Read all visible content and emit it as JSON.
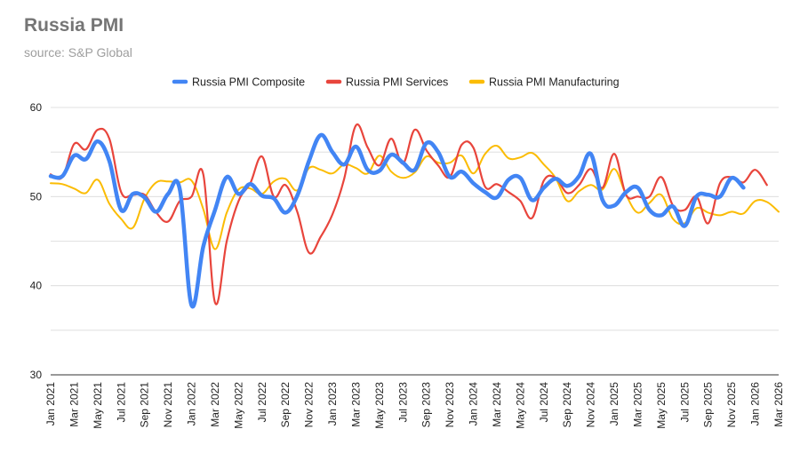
{
  "header": {
    "title": "Russia PMI",
    "subtitle": "source: S&P Global"
  },
  "chart_data": {
    "type": "line",
    "title": "Russia PMI",
    "subtitle": "source: S&P Global",
    "xlabel": "",
    "ylabel": "",
    "ylim": [
      30,
      60
    ],
    "yticks": [
      30,
      40,
      50,
      60
    ],
    "grid": true,
    "legend_position": "top",
    "x_tick_labels": [
      "Jan 2021",
      "Mar 2021",
      "May 2021",
      "Jul 2021",
      "Sep 2021",
      "Nov 2021",
      "Jan 2022",
      "Mar 2022",
      "May 2022",
      "Jul 2022",
      "Sep 2022",
      "Nov 2022",
      "Jan 2023",
      "Mar 2023",
      "May 2023",
      "Jul 2023",
      "Sep 2023",
      "Nov 2023",
      "Jan 2024",
      "Mar 2024",
      "May 2024",
      "Jul 2024",
      "Sep 2024",
      "Nov 2024",
      "Jan 2025",
      "Mar 2025",
      "May 2025",
      "Jul 2025",
      "Sep 2025",
      "Nov 2025",
      "Jan 2026",
      "Mar 2026"
    ],
    "x": [
      "2021-01",
      "2021-02",
      "2021-03",
      "2021-04",
      "2021-05",
      "2021-06",
      "2021-07",
      "2021-08",
      "2021-09",
      "2021-10",
      "2021-11",
      "2021-12",
      "2022-01",
      "2022-02",
      "2022-03",
      "2022-04",
      "2022-05",
      "2022-06",
      "2022-07",
      "2022-08",
      "2022-09",
      "2022-10",
      "2022-11",
      "2022-12",
      "2023-01",
      "2023-02",
      "2023-03",
      "2023-04",
      "2023-05",
      "2023-06",
      "2023-07",
      "2023-08",
      "2023-09",
      "2023-10",
      "2023-11",
      "2023-12",
      "2024-01",
      "2024-02",
      "2024-03",
      "2024-04",
      "2024-05",
      "2024-06",
      "2024-07",
      "2024-08",
      "2024-09",
      "2024-10",
      "2024-11",
      "2024-12",
      "2025-01",
      "2025-02",
      "2025-03",
      "2025-04",
      "2025-05",
      "2025-06",
      "2025-07",
      "2025-08",
      "2025-09",
      "2025-10",
      "2025-11",
      "2025-12",
      "2026-01",
      "2026-02",
      "2026-03"
    ],
    "series": [
      {
        "name": "Russia PMI Composite",
        "color": "#4285f4",
        "values": [
          52.3,
          52.3,
          54.6,
          54.2,
          56.2,
          54.0,
          48.5,
          50.3,
          49.9,
          48.3,
          50.3,
          50.8,
          37.8,
          44.4,
          48.5,
          52.2,
          50.3,
          51.4,
          50.1,
          49.8,
          48.2,
          50.1,
          54.0,
          56.9,
          55.0,
          53.6,
          55.6,
          53.0,
          52.9,
          54.7,
          53.8,
          53.0,
          56.0,
          55.0,
          52.2,
          52.8,
          51.5,
          50.5,
          49.9,
          51.9,
          52.1,
          49.6,
          51.0,
          52.0,
          51.2,
          52.3,
          54.8,
          49.6,
          49.0,
          50.5,
          51.0,
          48.5,
          47.9,
          48.9,
          46.7,
          50.0,
          50.2,
          50.0,
          52.1,
          51.0,
          null,
          null,
          null
        ],
        "x_index_start": 0
      },
      {
        "name": "Russia PMI Services",
        "color": "#e8453c",
        "values": [
          52.5,
          52.2,
          55.9,
          55.3,
          57.5,
          56.5,
          50.5,
          50.2,
          50.2,
          48.2,
          47.2,
          49.5,
          50.0,
          52.5,
          38.1,
          45.0,
          49.5,
          51.5,
          54.5,
          50.0,
          51.3,
          48.3,
          43.7,
          45.5,
          48.0,
          52.0,
          58.0,
          55.5,
          53.5,
          56.5,
          53.7,
          57.5,
          55.2,
          53.5,
          52.2,
          55.8,
          55.5,
          51.1,
          51.4,
          50.5,
          49.5,
          47.6,
          51.8,
          52.1,
          50.4,
          51.3,
          53.1,
          51.0,
          54.8,
          50.2,
          50.0,
          50.0,
          52.2,
          49.0,
          48.5,
          50.0,
          47.0,
          51.5,
          52.2,
          51.6,
          53.0,
          51.3,
          null
        ]
      },
      {
        "name": "Russia PMI Manufacturing",
        "color": "#fbbc04",
        "values": [
          51.5,
          51.4,
          50.9,
          50.4,
          51.9,
          49.2,
          47.5,
          46.5,
          49.8,
          51.6,
          51.7,
          51.6,
          51.8,
          48.6,
          44.1,
          48.2,
          50.8,
          50.9,
          50.3,
          51.7,
          52.0,
          50.7,
          53.2,
          53.0,
          52.6,
          53.6,
          53.2,
          52.6,
          54.6,
          52.8,
          52.1,
          52.7,
          54.5,
          53.8,
          53.8,
          54.6,
          52.6,
          54.8,
          55.7,
          54.3,
          54.4,
          54.9,
          53.6,
          52.1,
          49.5,
          50.6,
          51.3,
          50.8,
          53.1,
          50.2,
          48.2,
          49.3,
          50.2,
          47.5,
          47.0,
          48.7,
          48.2,
          47.9,
          48.3,
          48.1,
          49.5,
          49.4,
          48.3
        ]
      }
    ]
  }
}
